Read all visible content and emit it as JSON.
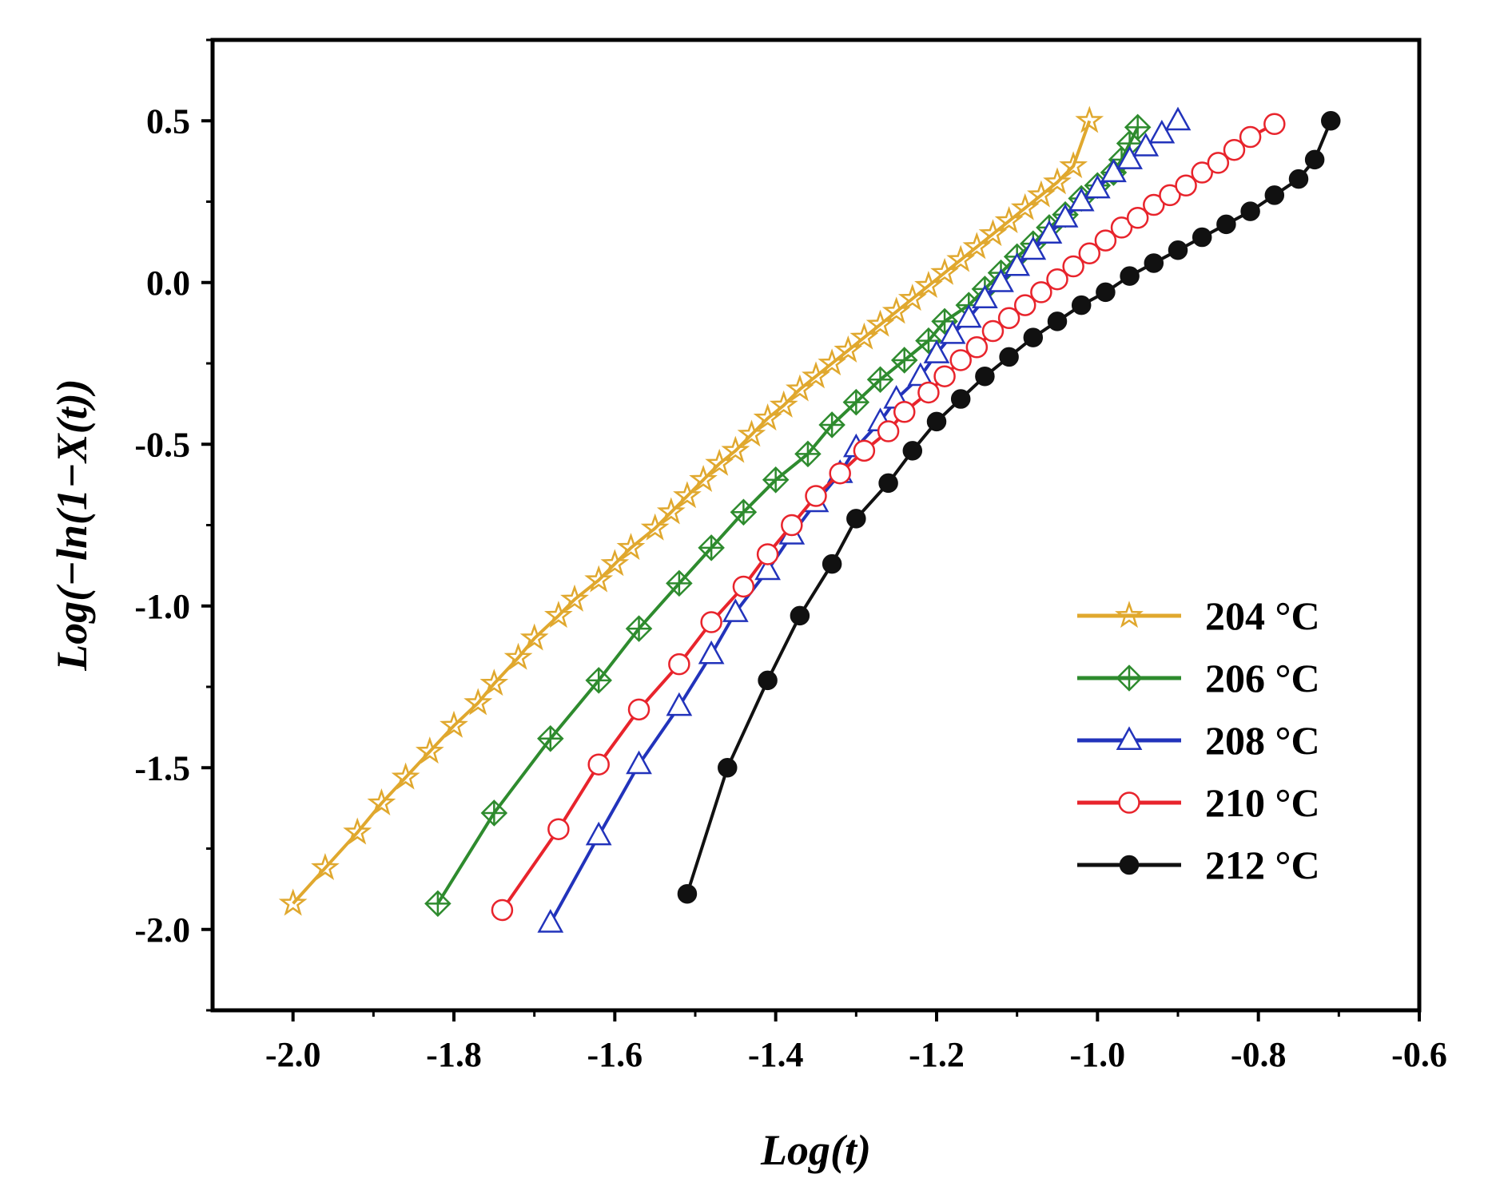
{
  "chart_data": {
    "type": "line",
    "title": "",
    "xlabel": "Log(t)",
    "ylabel": "Log(−ln(1−X(t))",
    "xlim": [
      -2.1,
      -0.6
    ],
    "ylim": [
      -2.25,
      0.75
    ],
    "xticks": [
      -2.0,
      -1.8,
      -1.6,
      -1.4,
      -1.2,
      -1.0,
      -0.8,
      -0.6
    ],
    "xtick_labels": [
      "-2.0",
      "-1.8",
      "-1.6",
      "-1.4",
      "-1.2",
      "-1.0",
      "-0.8",
      "-0.6"
    ],
    "yticks": [
      0.5,
      0.0,
      -0.5,
      -1.0,
      -1.5,
      -2.0
    ],
    "ytick_labels": [
      "0.5",
      "0.0",
      "-0.5",
      "-1.0",
      "-1.5",
      "-2.0"
    ],
    "grid": false,
    "legend_position": "bottom-right",
    "series": [
      {
        "name": "204 °C",
        "color": "#E0A82E",
        "marker": "star",
        "points": [
          [
            -2.0,
            -1.92
          ],
          [
            -1.96,
            -1.81
          ],
          [
            -1.92,
            -1.7
          ],
          [
            -1.89,
            -1.61
          ],
          [
            -1.86,
            -1.53
          ],
          [
            -1.83,
            -1.45
          ],
          [
            -1.8,
            -1.37
          ],
          [
            -1.77,
            -1.3
          ],
          [
            -1.75,
            -1.24
          ],
          [
            -1.72,
            -1.16
          ],
          [
            -1.7,
            -1.1
          ],
          [
            -1.67,
            -1.03
          ],
          [
            -1.65,
            -0.98
          ],
          [
            -1.62,
            -0.92
          ],
          [
            -1.6,
            -0.87
          ],
          [
            -1.58,
            -0.82
          ],
          [
            -1.55,
            -0.76
          ],
          [
            -1.53,
            -0.71
          ],
          [
            -1.51,
            -0.66
          ],
          [
            -1.49,
            -0.61
          ],
          [
            -1.47,
            -0.56
          ],
          [
            -1.45,
            -0.52
          ],
          [
            -1.43,
            -0.47
          ],
          [
            -1.41,
            -0.42
          ],
          [
            -1.39,
            -0.38
          ],
          [
            -1.37,
            -0.33
          ],
          [
            -1.35,
            -0.29
          ],
          [
            -1.33,
            -0.25
          ],
          [
            -1.31,
            -0.21
          ],
          [
            -1.29,
            -0.17
          ],
          [
            -1.27,
            -0.13
          ],
          [
            -1.25,
            -0.09
          ],
          [
            -1.23,
            -0.05
          ],
          [
            -1.21,
            -0.01
          ],
          [
            -1.19,
            0.03
          ],
          [
            -1.17,
            0.07
          ],
          [
            -1.15,
            0.11
          ],
          [
            -1.13,
            0.15
          ],
          [
            -1.11,
            0.19
          ],
          [
            -1.09,
            0.23
          ],
          [
            -1.07,
            0.27
          ],
          [
            -1.05,
            0.31
          ],
          [
            -1.03,
            0.36
          ],
          [
            -1.01,
            0.5
          ]
        ]
      },
      {
        "name": "206 °C",
        "color": "#2E8B2E",
        "marker": "diamond-cross",
        "points": [
          [
            -1.82,
            -1.92
          ],
          [
            -1.75,
            -1.64
          ],
          [
            -1.68,
            -1.41
          ],
          [
            -1.62,
            -1.23
          ],
          [
            -1.57,
            -1.07
          ],
          [
            -1.52,
            -0.93
          ],
          [
            -1.48,
            -0.82
          ],
          [
            -1.44,
            -0.71
          ],
          [
            -1.4,
            -0.61
          ],
          [
            -1.36,
            -0.53
          ],
          [
            -1.33,
            -0.44
          ],
          [
            -1.3,
            -0.37
          ],
          [
            -1.27,
            -0.3
          ],
          [
            -1.24,
            -0.24
          ],
          [
            -1.21,
            -0.18
          ],
          [
            -1.19,
            -0.12
          ],
          [
            -1.16,
            -0.07
          ],
          [
            -1.14,
            -0.02
          ],
          [
            -1.12,
            0.03
          ],
          [
            -1.1,
            0.08
          ],
          [
            -1.08,
            0.12
          ],
          [
            -1.06,
            0.17
          ],
          [
            -1.04,
            0.21
          ],
          [
            -1.02,
            0.26
          ],
          [
            -1.0,
            0.3
          ],
          [
            -0.98,
            0.34
          ],
          [
            -0.97,
            0.38
          ],
          [
            -0.96,
            0.43
          ],
          [
            -0.95,
            0.48
          ]
        ]
      },
      {
        "name": "208 °C",
        "color": "#2233BB",
        "marker": "triangle",
        "points": [
          [
            -1.68,
            -1.98
          ],
          [
            -1.62,
            -1.71
          ],
          [
            -1.57,
            -1.49
          ],
          [
            -1.52,
            -1.31
          ],
          [
            -1.48,
            -1.15
          ],
          [
            -1.45,
            -1.02
          ],
          [
            -1.41,
            -0.89
          ],
          [
            -1.38,
            -0.78
          ],
          [
            -1.35,
            -0.68
          ],
          [
            -1.32,
            -0.59
          ],
          [
            -1.3,
            -0.51
          ],
          [
            -1.27,
            -0.43
          ],
          [
            -1.25,
            -0.36
          ],
          [
            -1.22,
            -0.29
          ],
          [
            -1.2,
            -0.22
          ],
          [
            -1.18,
            -0.16
          ],
          [
            -1.16,
            -0.11
          ],
          [
            -1.14,
            -0.05
          ],
          [
            -1.12,
            0.0
          ],
          [
            -1.1,
            0.05
          ],
          [
            -1.08,
            0.1
          ],
          [
            -1.06,
            0.15
          ],
          [
            -1.04,
            0.2
          ],
          [
            -1.02,
            0.25
          ],
          [
            -1.0,
            0.29
          ],
          [
            -0.98,
            0.34
          ],
          [
            -0.96,
            0.38
          ],
          [
            -0.94,
            0.42
          ],
          [
            -0.92,
            0.46
          ],
          [
            -0.9,
            0.5
          ]
        ]
      },
      {
        "name": "210 °C",
        "color": "#E8242C",
        "marker": "circle-open",
        "points": [
          [
            -1.74,
            -1.94
          ],
          [
            -1.67,
            -1.69
          ],
          [
            -1.62,
            -1.49
          ],
          [
            -1.57,
            -1.32
          ],
          [
            -1.52,
            -1.18
          ],
          [
            -1.48,
            -1.05
          ],
          [
            -1.44,
            -0.94
          ],
          [
            -1.41,
            -0.84
          ],
          [
            -1.38,
            -0.75
          ],
          [
            -1.35,
            -0.66
          ],
          [
            -1.32,
            -0.59
          ],
          [
            -1.29,
            -0.52
          ],
          [
            -1.26,
            -0.46
          ],
          [
            -1.24,
            -0.4
          ],
          [
            -1.21,
            -0.34
          ],
          [
            -1.19,
            -0.29
          ],
          [
            -1.17,
            -0.24
          ],
          [
            -1.15,
            -0.2
          ],
          [
            -1.13,
            -0.15
          ],
          [
            -1.11,
            -0.11
          ],
          [
            -1.09,
            -0.07
          ],
          [
            -1.07,
            -0.03
          ],
          [
            -1.05,
            0.01
          ],
          [
            -1.03,
            0.05
          ],
          [
            -1.01,
            0.09
          ],
          [
            -0.99,
            0.13
          ],
          [
            -0.97,
            0.17
          ],
          [
            -0.95,
            0.2
          ],
          [
            -0.93,
            0.24
          ],
          [
            -0.91,
            0.27
          ],
          [
            -0.89,
            0.3
          ],
          [
            -0.87,
            0.34
          ],
          [
            -0.85,
            0.37
          ],
          [
            -0.83,
            0.41
          ],
          [
            -0.81,
            0.45
          ],
          [
            -0.78,
            0.49
          ]
        ]
      },
      {
        "name": "212 °C",
        "color": "#111111",
        "marker": "circle-filled",
        "points": [
          [
            -1.51,
            -1.89
          ],
          [
            -1.46,
            -1.5
          ],
          [
            -1.41,
            -1.23
          ],
          [
            -1.37,
            -1.03
          ],
          [
            -1.33,
            -0.87
          ],
          [
            -1.3,
            -0.73
          ],
          [
            -1.26,
            -0.62
          ],
          [
            -1.23,
            -0.52
          ],
          [
            -1.2,
            -0.43
          ],
          [
            -1.17,
            -0.36
          ],
          [
            -1.14,
            -0.29
          ],
          [
            -1.11,
            -0.23
          ],
          [
            -1.08,
            -0.17
          ],
          [
            -1.05,
            -0.12
          ],
          [
            -1.02,
            -0.07
          ],
          [
            -0.99,
            -0.03
          ],
          [
            -0.96,
            0.02
          ],
          [
            -0.93,
            0.06
          ],
          [
            -0.9,
            0.1
          ],
          [
            -0.87,
            0.14
          ],
          [
            -0.84,
            0.18
          ],
          [
            -0.81,
            0.22
          ],
          [
            -0.78,
            0.27
          ],
          [
            -0.75,
            0.32
          ],
          [
            -0.73,
            0.38
          ],
          [
            -0.71,
            0.5
          ]
        ]
      }
    ]
  }
}
